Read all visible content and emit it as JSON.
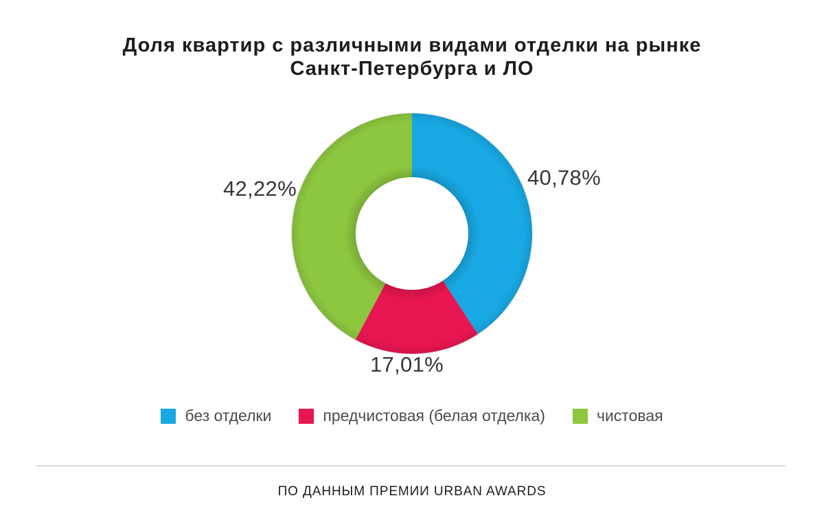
{
  "title": {
    "line1": "Доля квартир с различными видами отделки на рынке",
    "line2": "Санкт-Петербурга и ЛО"
  },
  "footer": {
    "source": "ПО ДАННЫМ ПРЕМИИ URBAN AWARDS"
  },
  "chart_data": {
    "type": "pie",
    "subtype": "donut",
    "title": "Доля квартир с различными видами отделки на рынке Санкт-Петербурга и ЛО",
    "start_angle_deg": 0,
    "direction": "clockwise",
    "legend_position": "bottom",
    "segments": [
      {
        "label": "без отделки",
        "value": 40.78,
        "display": "40,78%",
        "color": "#18a8e3"
      },
      {
        "label": "предчистовая (белая отделка)",
        "value": 17.01,
        "display": "17,01%",
        "color": "#e81650"
      },
      {
        "label": "чистовая",
        "value": 42.22,
        "display": "42,22%",
        "color": "#8dc63f"
      }
    ]
  }
}
